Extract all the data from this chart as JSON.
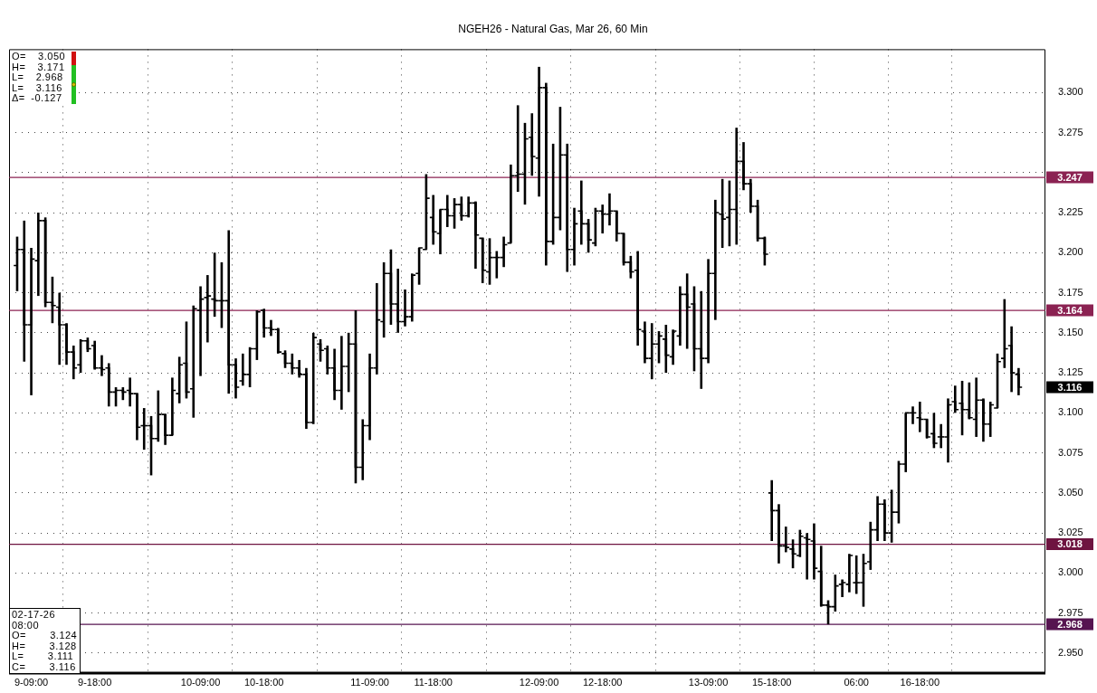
{
  "chart_data": {
    "type": "candlestick",
    "title": "NGEH26 - Natural Gas, Mar 26, 60 Min",
    "categories": [
      null,
      null,
      "9-09:00",
      null,
      null,
      null,
      null,
      null,
      null,
      null,
      null,
      "9-18:00",
      null,
      null,
      null,
      null,
      null,
      null,
      null,
      null,
      null,
      null,
      null,
      null,
      null,
      null,
      "10-09:00",
      null,
      null,
      null,
      null,
      null,
      null,
      null,
      null,
      "10-18:00",
      null,
      null,
      null,
      null,
      null,
      null,
      null,
      null,
      null,
      null,
      null,
      null,
      null,
      null,
      "11-09:00",
      null,
      null,
      null,
      null,
      null,
      null,
      null,
      null,
      "11-18:00",
      null,
      null,
      null,
      null,
      null,
      null,
      null,
      null,
      null,
      null,
      null,
      null,
      null,
      null,
      "12-09:00",
      null,
      null,
      null,
      null,
      null,
      null,
      null,
      null,
      "12-18:00",
      null,
      null,
      null,
      null,
      null,
      null,
      null,
      null,
      null,
      null,
      null,
      null,
      null,
      null,
      "13-09:00",
      null,
      null,
      null,
      null,
      null,
      null,
      null,
      null,
      "15-18:00",
      null,
      null,
      null,
      null,
      null,
      null,
      null,
      null,
      null,
      null,
      null,
      "06:00",
      null,
      null,
      null,
      null,
      null,
      null,
      null,
      null,
      "16-18:00",
      null,
      null,
      null,
      null,
      null,
      null,
      null,
      null,
      null,
      null,
      null,
      null,
      null,
      null
    ],
    "ohlc": [
      [
        3.192,
        3.21,
        3.176,
        3.202
      ],
      [
        3.202,
        3.22,
        3.132,
        3.155
      ],
      [
        3.155,
        3.203,
        3.111,
        3.196
      ],
      [
        3.195,
        3.225,
        3.173,
        3.22
      ],
      [
        3.22,
        3.222,
        3.166,
        3.169
      ],
      [
        3.169,
        3.185,
        3.156,
        3.167
      ],
      [
        3.166,
        3.175,
        3.13,
        3.155
      ],
      [
        3.155,
        3.156,
        3.13,
        3.138
      ],
      [
        3.138,
        3.142,
        3.121,
        3.128
      ],
      [
        3.13,
        3.146,
        3.125,
        3.145
      ],
      [
        3.145,
        3.147,
        3.138,
        3.14
      ],
      [
        3.142,
        3.145,
        3.127,
        3.128
      ],
      [
        3.128,
        3.136,
        3.123,
        3.127
      ],
      [
        3.128,
        3.131,
        3.104,
        3.113
      ],
      [
        3.113,
        3.116,
        3.104,
        3.114
      ],
      [
        3.114,
        3.116,
        3.108,
        3.113
      ],
      [
        3.114,
        3.122,
        3.104,
        3.112
      ],
      [
        3.112,
        3.112,
        3.083,
        3.091
      ],
      [
        3.092,
        3.103,
        3.077,
        3.092
      ],
      [
        3.092,
        3.098,
        3.061,
        3.084
      ],
      [
        3.084,
        3.114,
        3.082,
        3.099
      ],
      [
        3.099,
        3.099,
        3.08,
        3.086
      ],
      [
        3.086,
        3.122,
        3.086,
        3.114
      ],
      [
        3.112,
        3.135,
        3.106,
        3.13
      ],
      [
        3.131,
        3.157,
        3.109,
        3.113
      ],
      [
        3.115,
        3.167,
        3.097,
        3.165
      ],
      [
        3.164,
        3.179,
        3.123,
        3.171
      ],
      [
        3.172,
        3.186,
        3.144,
        3.173
      ],
      [
        3.171,
        3.2,
        3.16,
        3.17
      ],
      [
        3.17,
        3.194,
        3.153,
        3.17
      ],
      [
        3.17,
        3.214,
        3.112,
        3.13
      ],
      [
        3.13,
        3.134,
        3.109,
        3.116
      ],
      [
        3.12,
        3.137,
        3.117,
        3.124
      ],
      [
        3.124,
        3.141,
        3.116,
        3.14
      ],
      [
        3.14,
        3.164,
        3.133,
        3.163
      ],
      [
        3.164,
        3.165,
        3.147,
        3.153
      ],
      [
        3.153,
        3.158,
        3.148,
        3.152
      ],
      [
        3.152,
        3.153,
        3.137,
        3.138
      ],
      [
        3.137,
        3.139,
        3.128,
        3.131
      ],
      [
        3.131,
        3.137,
        3.124,
        3.128
      ],
      [
        3.128,
        3.133,
        3.122,
        3.124
      ],
      [
        3.124,
        3.128,
        3.09,
        3.094
      ],
      [
        3.094,
        3.15,
        3.093,
        3.147
      ],
      [
        3.143,
        3.146,
        3.132,
        3.139
      ],
      [
        3.14,
        3.142,
        3.124,
        3.128
      ],
      [
        3.128,
        3.14,
        3.108,
        3.114
      ],
      [
        3.114,
        3.148,
        3.102,
        3.129
      ],
      [
        3.129,
        3.15,
        3.113,
        3.143
      ],
      [
        3.143,
        3.164,
        3.056,
        3.066
      ],
      [
        3.066,
        3.096,
        3.058,
        3.092
      ],
      [
        3.092,
        3.137,
        3.083,
        3.128
      ],
      [
        3.128,
        3.181,
        3.124,
        3.158
      ],
      [
        3.157,
        3.194,
        3.147,
        3.187
      ],
      [
        3.187,
        3.202,
        3.155,
        3.168
      ],
      [
        3.168,
        3.19,
        3.15,
        3.157
      ],
      [
        3.157,
        3.177,
        3.154,
        3.16
      ],
      [
        3.16,
        3.187,
        3.157,
        3.186
      ],
      [
        3.187,
        3.203,
        3.18,
        3.203
      ],
      [
        3.202,
        3.249,
        3.202,
        3.234
      ],
      [
        3.222,
        3.236,
        3.205,
        3.213
      ],
      [
        3.212,
        3.227,
        3.199,
        3.227
      ],
      [
        3.227,
        3.236,
        3.216,
        3.223
      ],
      [
        3.223,
        3.234,
        3.215,
        3.23
      ],
      [
        3.23,
        3.235,
        3.22,
        3.223
      ],
      [
        3.223,
        3.235,
        3.222,
        3.231
      ],
      [
        3.231,
        3.232,
        3.19,
        3.211
      ],
      [
        3.209,
        3.209,
        3.181,
        3.189
      ],
      [
        3.188,
        3.209,
        3.18,
        3.197
      ],
      [
        3.197,
        3.201,
        3.184,
        3.197
      ],
      [
        3.197,
        3.21,
        3.191,
        3.205
      ],
      [
        3.206,
        3.255,
        3.206,
        3.248
      ],
      [
        3.248,
        3.292,
        3.238,
        3.249
      ],
      [
        3.249,
        3.281,
        3.23,
        3.271
      ],
      [
        3.272,
        3.287,
        3.248,
        3.26
      ],
      [
        3.259,
        3.316,
        3.235,
        3.303
      ],
      [
        3.303,
        3.306,
        3.192,
        3.207
      ],
      [
        3.207,
        3.268,
        3.205,
        3.222
      ],
      [
        3.222,
        3.291,
        3.214,
        3.261
      ],
      [
        3.261,
        3.268,
        3.188,
        3.202
      ],
      [
        3.202,
        3.228,
        3.192,
        3.218
      ],
      [
        3.226,
        3.245,
        3.205,
        3.218
      ],
      [
        3.218,
        3.221,
        3.2,
        3.208
      ],
      [
        3.206,
        3.228,
        3.204,
        3.226
      ],
      [
        3.226,
        3.23,
        3.212,
        3.224
      ],
      [
        3.224,
        3.237,
        3.217,
        3.226
      ],
      [
        3.226,
        3.226,
        3.207,
        3.212
      ],
      [
        3.212,
        3.212,
        3.192,
        3.194
      ],
      [
        3.194,
        3.198,
        3.184,
        3.188
      ],
      [
        3.189,
        3.201,
        3.142,
        3.152
      ],
      [
        3.151,
        3.157,
        3.131,
        3.134
      ],
      [
        3.134,
        3.156,
        3.121,
        3.143
      ],
      [
        3.143,
        3.151,
        3.131,
        3.148
      ],
      [
        3.146,
        3.155,
        3.125,
        3.136
      ],
      [
        3.135,
        3.152,
        3.13,
        3.151
      ],
      [
        3.148,
        3.179,
        3.142,
        3.174
      ],
      [
        3.174,
        3.187,
        3.14,
        3.166
      ],
      [
        3.168,
        3.179,
        3.126,
        3.14
      ],
      [
        3.14,
        3.176,
        3.115,
        3.134
      ],
      [
        3.134,
        3.196,
        3.131,
        3.187
      ],
      [
        3.187,
        3.233,
        3.158,
        3.225
      ],
      [
        3.224,
        3.246,
        3.203,
        3.221
      ],
      [
        3.222,
        3.245,
        3.204,
        3.227
      ],
      [
        3.227,
        3.278,
        3.205,
        3.257
      ],
      [
        3.257,
        3.269,
        3.239,
        3.243
      ],
      [
        3.243,
        3.246,
        3.225,
        3.229
      ],
      [
        3.229,
        3.233,
        3.207,
        3.209
      ],
      [
        3.209,
        3.21,
        3.192,
        3.199
      ],
      [
        3.05,
        3.058,
        3.02,
        3.039
      ],
      [
        3.039,
        3.043,
        3.006,
        3.017
      ],
      [
        3.017,
        3.029,
        3.013,
        3.016
      ],
      [
        3.015,
        3.021,
        3.003,
        3.012
      ],
      [
        3.011,
        3.027,
        3.01,
        3.023
      ],
      [
        3.022,
        3.025,
        2.996,
        3.021
      ],
      [
        3.02,
        3.031,
        2.996,
        3.003
      ],
      [
        3.001,
        3.017,
        2.979,
        2.98
      ],
      [
        2.98,
        2.983,
        2.968,
        2.979
      ],
      [
        2.979,
        2.999,
        2.976,
        2.992
      ],
      [
        2.993,
        2.996,
        2.985,
        2.994
      ],
      [
        2.993,
        3.012,
        2.988,
        3.011
      ],
      [
        2.994,
        3.011,
        2.987,
        2.994
      ],
      [
        2.994,
        3.012,
        2.979,
        3.006
      ],
      [
        3.007,
        3.032,
        3.002,
        3.027
      ],
      [
        3.027,
        3.048,
        3.02,
        3.043
      ],
      [
        3.043,
        3.046,
        3.02,
        3.025
      ],
      [
        3.025,
        3.052,
        3.019,
        3.038
      ],
      [
        3.038,
        3.07,
        3.031,
        3.068
      ],
      [
        3.068,
        3.1,
        3.063,
        3.1
      ],
      [
        3.1,
        3.104,
        3.093,
        3.1
      ],
      [
        3.097,
        3.107,
        3.088,
        3.096
      ],
      [
        3.096,
        3.096,
        3.084,
        3.085
      ],
      [
        3.087,
        3.1,
        3.078,
        3.081
      ],
      [
        3.085,
        3.093,
        3.078,
        3.085
      ],
      [
        3.085,
        3.109,
        3.069,
        3.105
      ],
      [
        3.107,
        3.117,
        3.1,
        3.102
      ],
      [
        3.106,
        3.12,
        3.086,
        3.102
      ],
      [
        3.102,
        3.119,
        3.096,
        3.097
      ],
      [
        3.096,
        3.122,
        3.085,
        3.108
      ],
      [
        3.108,
        3.109,
        3.082,
        3.093
      ],
      [
        3.093,
        3.107,
        3.085,
        3.105
      ],
      [
        3.103,
        3.137,
        3.103,
        3.132
      ],
      [
        3.134,
        3.171,
        3.128,
        3.14
      ],
      [
        3.142,
        3.154,
        3.113,
        3.125
      ],
      [
        3.124,
        3.128,
        3.111,
        3.116
      ]
    ],
    "color": "#000000",
    "ylim": [
      2.937,
      3.327
    ],
    "yticks": [
      {
        "value": 2.95,
        "label": "2.950"
      },
      {
        "value": 2.975,
        "label": "2.975"
      },
      {
        "value": 3.0,
        "label": "3.000"
      },
      {
        "value": 3.025,
        "label": "3.025"
      },
      {
        "value": 3.05,
        "label": "3.050"
      },
      {
        "value": 3.075,
        "label": "3.075"
      },
      {
        "value": 3.1,
        "label": "3.100"
      },
      {
        "value": 3.125,
        "label": "3.125"
      },
      {
        "value": 3.15,
        "label": "3.150"
      },
      {
        "value": 3.175,
        "label": "3.175"
      },
      {
        "value": 3.2,
        "label": "3.200"
      },
      {
        "value": 3.225,
        "label": "3.225"
      },
      {
        "value": 3.25,
        "label": null
      },
      {
        "value": 3.275,
        "label": "3.275"
      },
      {
        "value": 3.3,
        "label": "3.300"
      }
    ],
    "grid": true,
    "ref_lines": [
      {
        "axis": "y",
        "value": 3.247,
        "label": "3.247",
        "color": "#8b2252"
      },
      {
        "axis": "y",
        "value": 3.164,
        "label": "3.164",
        "color": "#8b2252"
      },
      {
        "axis": "y",
        "value": 3.018,
        "label": "3.018",
        "color": "#6e1440"
      },
      {
        "axis": "y",
        "value": 2.968,
        "label": "2.968",
        "color": "#561450"
      }
    ],
    "annotations": [
      "O=  3.050\nH=  3.171\nL=  2.968\nL=  3.116\nΔ= -0.127",
      "02-17-26\n08:00\nO=    3.124\nH=    3.128\nL=    3.111\nC=    3.116",
      "3.116"
    ]
  }
}
